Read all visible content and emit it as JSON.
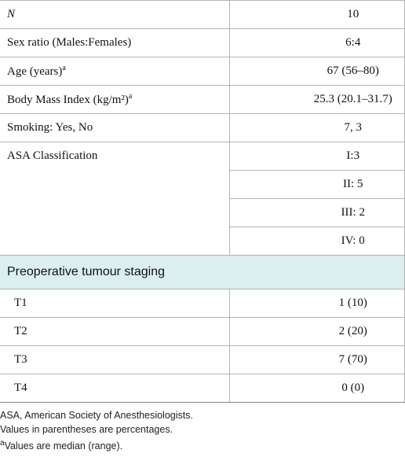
{
  "table": {
    "rows": [
      {
        "label": "N",
        "values": [
          "10"
        ]
      },
      {
        "label": "Sex ratio (Males:Females)",
        "values": [
          "6:4"
        ]
      },
      {
        "label": "Age (years)",
        "sup": "a",
        "values": [
          "67 (56–80)"
        ]
      },
      {
        "label": "Body Mass Index (kg/m²)",
        "sup": "a",
        "values": [
          "25.3 (20.1–31.7)"
        ]
      },
      {
        "label": "Smoking: Yes, No",
        "values": [
          "7, 3"
        ]
      },
      {
        "label": "ASA Classification",
        "values": [
          "I:3",
          "II: 5",
          "III: 2",
          "IV: 0"
        ]
      }
    ],
    "section": "Preoperative tumour staging",
    "section_rows": [
      {
        "label": "T1",
        "value": "1 (10)"
      },
      {
        "label": "T2",
        "value": "2 (20)"
      },
      {
        "label": "T3",
        "value": "7 (70)"
      },
      {
        "label": "T4",
        "value": "0 (0)"
      }
    ]
  },
  "footnotes": [
    {
      "text": "ASA, American Society of Anesthesiologists."
    },
    {
      "text": "Values in parentheses are percentages."
    },
    {
      "sup": "a",
      "text": "Values are median (range)."
    }
  ]
}
